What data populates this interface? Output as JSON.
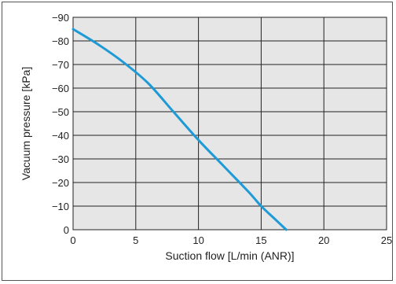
{
  "chart_data": {
    "type": "line",
    "title": "",
    "xlabel": "Suction flow [L/min (ANR)]",
    "ylabel": "Vacuum pressure [kPa]",
    "xlim": [
      0,
      25
    ],
    "ylim": [
      0,
      -90
    ],
    "x_ticks": [
      "0",
      "5",
      "10",
      "15",
      "20",
      "25"
    ],
    "y_ticks": [
      "0",
      "−10",
      "−20",
      "−30",
      "−40",
      "−50",
      "−60",
      "−70",
      "−80",
      "−90"
    ],
    "grid": true,
    "legend": "none",
    "series": [
      {
        "x": [
          0,
          2,
          4,
          6,
          8,
          10,
          12,
          14,
          15,
          16,
          17
        ],
        "y": [
          -85,
          -78.5,
          -71,
          -62,
          -50,
          -38,
          -27,
          -16,
          -10,
          -5,
          0
        ]
      }
    ],
    "colors": {
      "line": "#1e9ad6",
      "plot_bg": "#e6e6e6",
      "grid": "#222222"
    }
  }
}
